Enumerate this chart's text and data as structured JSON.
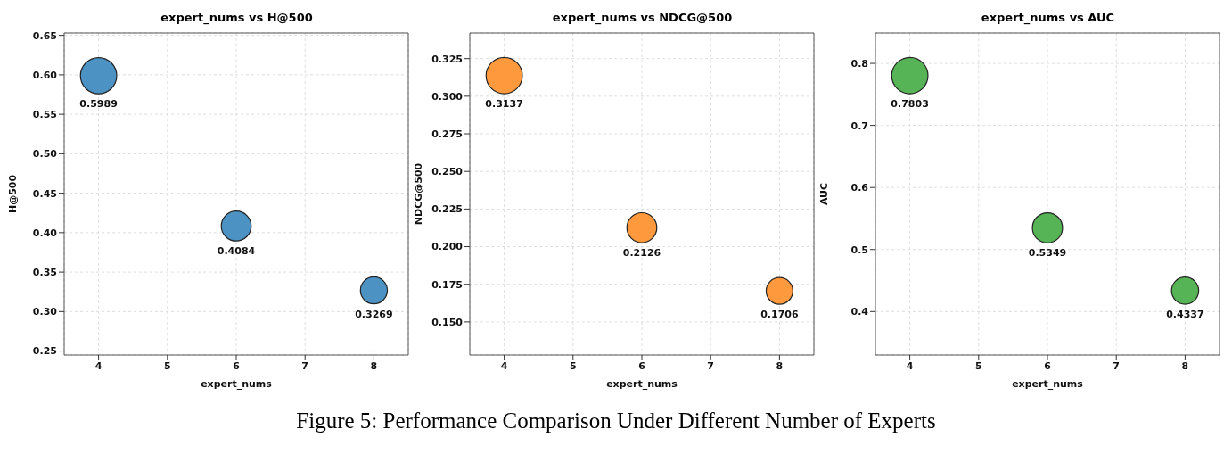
{
  "chart_data": [
    {
      "type": "bubble",
      "title": "expert_nums vs H@500",
      "xlabel": "expert_nums",
      "ylabel": "H@500",
      "x": [
        4,
        6,
        8
      ],
      "values": [
        0.5989,
        0.4084,
        0.3269
      ],
      "sizes": [
        1,
        0.68,
        0.55
      ],
      "color": "#4c92c3",
      "xlim": [
        3.5,
        8.5
      ],
      "xticks": [
        4,
        5,
        6,
        7,
        8
      ],
      "ylim": [
        0.245,
        0.653
      ],
      "yticks": [
        {
          "value": 0.25,
          "label": "0.25"
        },
        {
          "value": 0.3,
          "label": "0.30"
        },
        {
          "value": 0.35,
          "label": "0.35"
        },
        {
          "value": 0.4,
          "label": "0.40"
        },
        {
          "value": 0.45,
          "label": "0.45"
        },
        {
          "value": 0.5,
          "label": "0.50"
        },
        {
          "value": 0.55,
          "label": "0.55"
        },
        {
          "value": 0.6,
          "label": "0.60"
        },
        {
          "value": 0.65,
          "label": "0.65"
        }
      ],
      "grid": true,
      "data_labels": true,
      "marker": "circle",
      "annotations": [
        "Figure 5: Performance Comparison Under Different Number of Experts"
      ]
    },
    {
      "type": "bubble",
      "title": "expert_nums vs NDCG@500",
      "xlabel": "expert_nums",
      "ylabel": "NDCG@500",
      "x": [
        4,
        6,
        8
      ],
      "values": [
        0.3137,
        0.2126,
        0.1706
      ],
      "sizes": [
        1,
        0.68,
        0.54
      ],
      "color": "#ff993e",
      "xlim": [
        3.5,
        8.5
      ],
      "xticks": [
        4,
        5,
        6,
        7,
        8
      ],
      "ylim": [
        0.128,
        0.342
      ],
      "yticks": [
        {
          "value": 0.15,
          "label": "0.150"
        },
        0.175,
        {
          "value": 0.2,
          "label": "0.200"
        },
        0.225,
        {
          "value": 0.25,
          "label": "0.250"
        },
        0.275,
        {
          "value": 0.3,
          "label": "0.300"
        },
        0.325
      ],
      "grid": true,
      "data_labels": true,
      "marker": "circle"
    },
    {
      "type": "bubble",
      "title": "expert_nums vs AUC",
      "xlabel": "expert_nums",
      "ylabel": "AUC",
      "x": [
        4,
        6,
        8
      ],
      "values": [
        0.7803,
        0.5349,
        0.4337
      ],
      "sizes": [
        1,
        0.69,
        0.56
      ],
      "color": "#56b356",
      "xlim": [
        3.5,
        8.5
      ],
      "xticks": [
        4,
        5,
        6,
        7,
        8
      ],
      "ylim": [
        0.33,
        0.849
      ],
      "yticks": [
        0.4,
        0.5,
        0.6,
        0.7,
        0.8
      ],
      "grid": true,
      "data_labels": true,
      "marker": "circle"
    }
  ]
}
